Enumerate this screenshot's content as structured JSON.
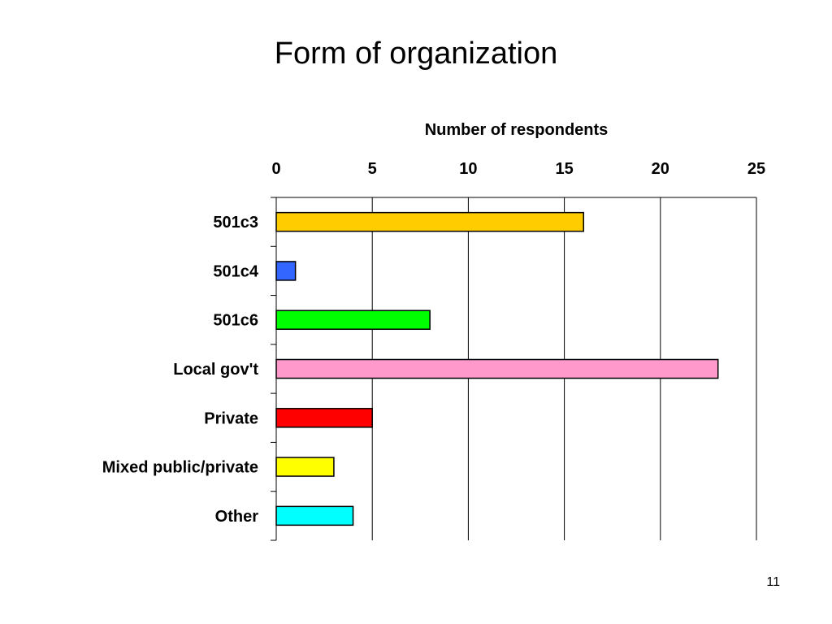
{
  "slide": {
    "title": "Form of organization",
    "page_number": "11"
  },
  "chart_data": {
    "type": "bar",
    "orientation": "horizontal",
    "title": "",
    "xlabel": "Number of respondents",
    "ylabel": "",
    "x_axis_position": "top",
    "xlim": [
      0,
      25
    ],
    "xticks": [
      0,
      5,
      10,
      15,
      20,
      25
    ],
    "grid": "vertical",
    "categories": [
      "501c3",
      "501c4",
      "501c6",
      "Local gov't",
      "Private",
      "Mixed public/private",
      "Other"
    ],
    "values": [
      16,
      1,
      8,
      23,
      5,
      3,
      4
    ],
    "colors": [
      "#FFCC00",
      "#3366FF",
      "#00FF00",
      "#FF99CC",
      "#FF0000",
      "#FFFF00",
      "#00FFFF"
    ]
  }
}
